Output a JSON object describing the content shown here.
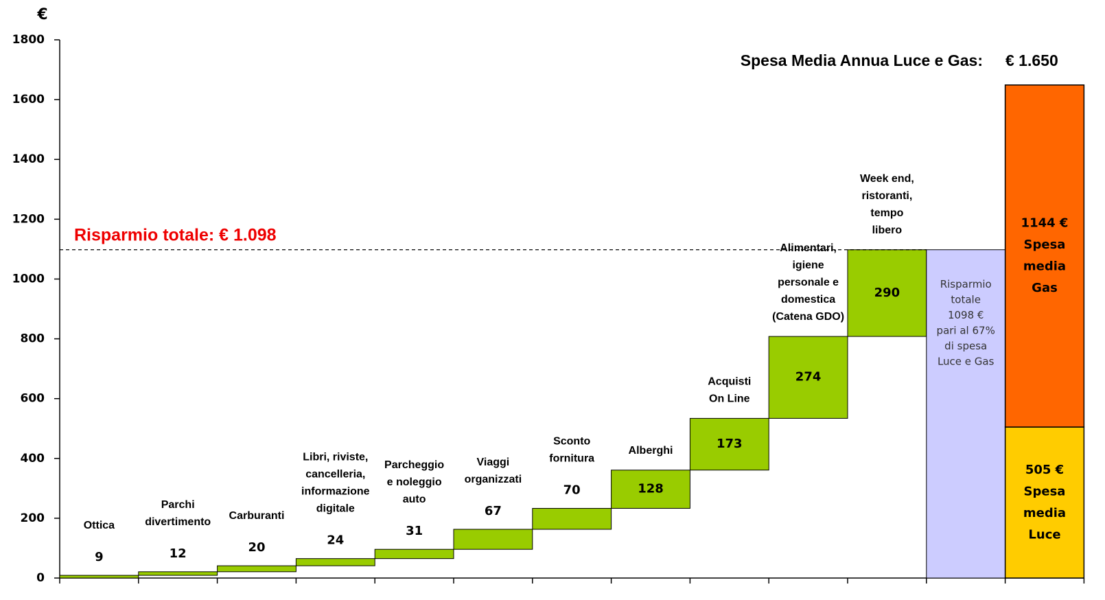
{
  "chart_data": {
    "type": "waterfall",
    "y_label": "€",
    "title": "Spesa Media Annua Luce e Gas:",
    "title_value": "€ 1.650",
    "annotation": "Risparmio totale: € 1.098",
    "categories": [
      "Ottica",
      "Parchi\ndivertimento",
      "Carburanti",
      "Libri, riviste,\ncancelleria,\ninformazione\ndigitale",
      "Parcheggio\ne noleggio\nauto",
      "Viaggi\norganizzati",
      "Sconto\nfornitura",
      "Alberghi",
      "Acquisti\nOn Line",
      "Alimentari,\nigiene\npersonale e\ndomestica\n(Catena GDO)",
      "Week end,\nristoranti,\ntempo\nlibero"
    ],
    "values": [
      9,
      12,
      20,
      24,
      31,
      67,
      70,
      128,
      173,
      274,
      290
    ],
    "color": "#99cc00",
    "total": {
      "label": "Risparmio\ntotale\n1098 €\npari al 67%\ndi spesa\nLuce e Gas",
      "value": 1098,
      "color": "#ccccff"
    },
    "stack": [
      {
        "name": "Spesa\nmedia\nLuce",
        "value": 505,
        "value_label": "505 €",
        "color": "#ffcc00"
      },
      {
        "name": "Spesa\nmedia\nGas",
        "value": 1144,
        "value_label": "1144 €",
        "color": "#ff6600"
      }
    ],
    "ylim": [
      0,
      1800
    ],
    "yticks": [
      0,
      200,
      400,
      600,
      800,
      1000,
      1200,
      1400,
      1600,
      1800
    ]
  }
}
